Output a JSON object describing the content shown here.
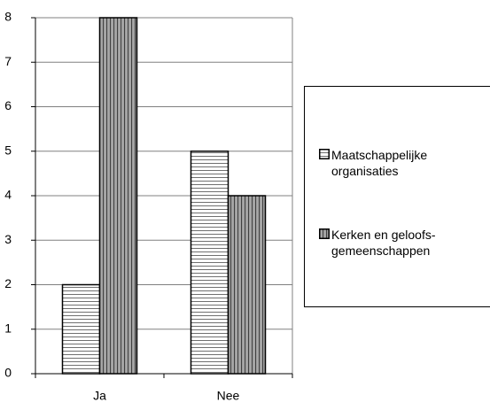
{
  "chart_data": {
    "type": "bar",
    "categories": [
      "Ja",
      "Nee"
    ],
    "series": [
      {
        "name": "Maatschappelijke organisaties",
        "color": "#ffffff",
        "pattern": "horizontal",
        "values": [
          2,
          5
        ]
      },
      {
        "name": "Kerken en geloofs-gemeenschappen",
        "color": "#a6a6a6",
        "pattern": "vertical",
        "values": [
          8,
          4
        ]
      }
    ],
    "ylim": [
      0,
      8
    ],
    "yticks": [
      0,
      1,
      2,
      3,
      4,
      5,
      6,
      7,
      8
    ],
    "grid": true,
    "legend": "right"
  }
}
